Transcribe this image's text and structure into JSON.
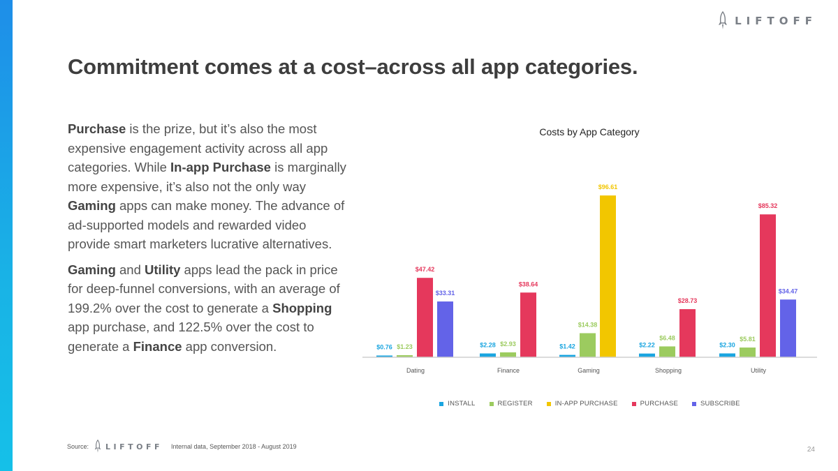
{
  "brand": {
    "logo_text": "LIFTOFF"
  },
  "slide": {
    "title": "Commitment comes at a cost–across all app categories.",
    "paragraph1": [
      {
        "text": "Purchase",
        "bold": true
      },
      {
        "text": " is the prize, but it’s also the most expensive engagement activity across all app categories. While ",
        "bold": false
      },
      {
        "text": "In-app Purchase",
        "bold": true
      },
      {
        "text": " is marginally more expensive, it’s also not the only way ",
        "bold": false
      },
      {
        "text": "Gaming",
        "bold": true
      },
      {
        "text": " apps can make money. The advance of ad-supported models and rewarded video provide smart marketers lucrative alternatives.",
        "bold": false
      }
    ],
    "paragraph2": [
      {
        "text": "Gaming",
        "bold": true
      },
      {
        "text": " and ",
        "bold": false
      },
      {
        "text": "Utility",
        "bold": true
      },
      {
        "text": " apps lead the pack in price for deep-funnel conversions, with an average of 199.2% over the cost to generate a ",
        "bold": false
      },
      {
        "text": "Shopping",
        "bold": true
      },
      {
        "text": " app purchase, and 122.5% over the cost to generate a ",
        "bold": false
      },
      {
        "text": "Finance",
        "bold": true
      },
      {
        "text": " app conversion.",
        "bold": false
      }
    ],
    "source_label": "Source:",
    "source_text": "Internal data, September 2018 - August 2019",
    "page_number": "24"
  },
  "chart_data": {
    "type": "bar",
    "title": "Costs by App Category",
    "categories": [
      "Dating",
      "Finance",
      "Gaming",
      "Shopping",
      "Utility"
    ],
    "ylim": [
      0,
      100
    ],
    "series": [
      {
        "name": "INSTALL",
        "color": "#1aa5e0",
        "values": [
          0.76,
          2.28,
          1.42,
          2.22,
          2.3
        ],
        "labels": [
          "$0.76",
          "$2.28",
          "$1.42",
          "$2.22",
          "$2.30"
        ]
      },
      {
        "name": "REGISTER",
        "color": "#9ccb5f",
        "values": [
          1.23,
          2.93,
          14.38,
          6.48,
          5.81
        ],
        "labels": [
          "$1.23",
          "$2.93",
          "$14.38",
          "$6.48",
          "$5.81"
        ]
      },
      {
        "name": "IN-APP PURCHASE",
        "color": "#f2c600",
        "values": [
          null,
          null,
          96.61,
          null,
          null
        ],
        "labels": [
          null,
          null,
          "$96.61",
          null,
          null
        ]
      },
      {
        "name": "PURCHASE",
        "color": "#e5385c",
        "values": [
          47.42,
          38.64,
          null,
          28.73,
          85.32
        ],
        "labels": [
          "$47.42",
          "$38.64",
          null,
          "$28.73",
          "$85.32"
        ]
      },
      {
        "name": "SUBSCRIBE",
        "color": "#6363e8",
        "values": [
          33.31,
          null,
          null,
          null,
          34.47
        ],
        "labels": [
          "$33.31",
          null,
          null,
          null,
          "$34.47"
        ]
      }
    ]
  }
}
